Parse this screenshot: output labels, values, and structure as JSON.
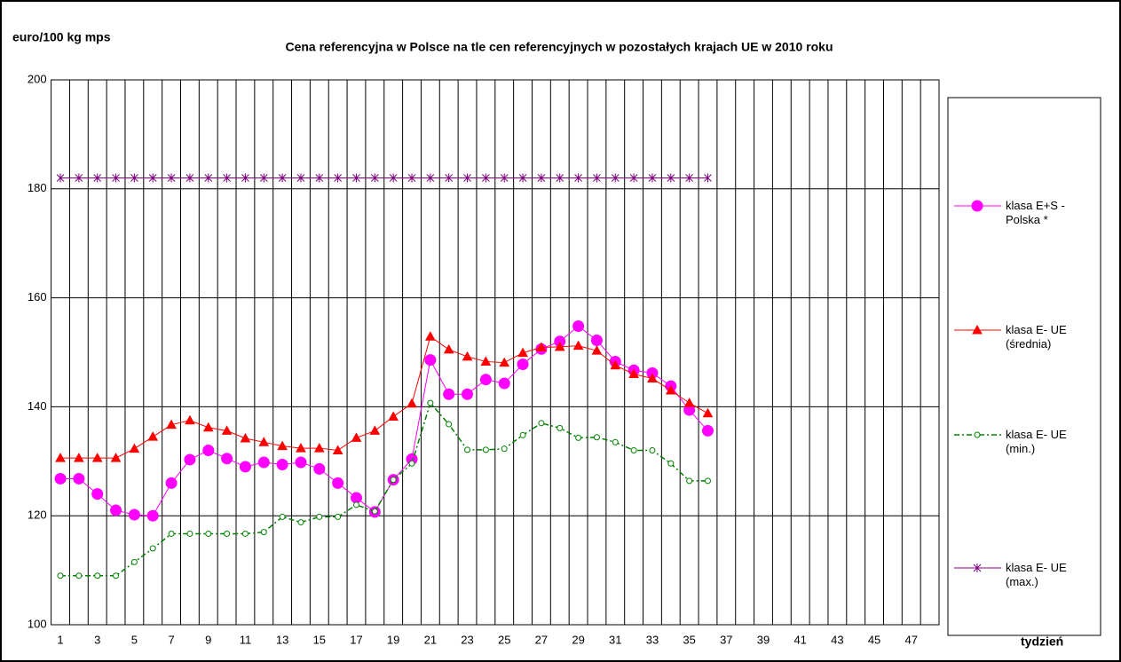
{
  "chart_data": {
    "type": "line",
    "title": "Cena referencyjna w Polsce na tle cen referencyjnych w pozostałych krajach UE w 2010 roku",
    "y_label": "euro/100 kg mps",
    "x_label": "tydzień",
    "categories": [
      1,
      null,
      3,
      null,
      5,
      null,
      7,
      null,
      9,
      null,
      11,
      null,
      13,
      null,
      15,
      null,
      17,
      null,
      19,
      null,
      21,
      null,
      23,
      null,
      25,
      null,
      27,
      null,
      29,
      null,
      31,
      null,
      33,
      null,
      35,
      null,
      37,
      null,
      39,
      null,
      41,
      null,
      43,
      null,
      45,
      null,
      47,
      null
    ],
    "ylim": [
      100,
      200
    ],
    "yticks": [
      100,
      120,
      140,
      160,
      180,
      200
    ],
    "grid": true,
    "legend": "right",
    "series": [
      {
        "name": "klasa E+S - Polska *",
        "color": "#ff00ff",
        "marker": "circle",
        "values": [
          126.8,
          126.8,
          124,
          121,
          120.2,
          120,
          126,
          130.3,
          132,
          130.5,
          129,
          129.8,
          129.4,
          129.8,
          128.6,
          126,
          123.3,
          120.7,
          126.6,
          130.4,
          148.6,
          142.3,
          142.3,
          145,
          144.3,
          147.8,
          150.6,
          152,
          154.8,
          152.2,
          148.3,
          146.7,
          146.2,
          143.8,
          139.4,
          135.6,
          null,
          null,
          null,
          null,
          null,
          null,
          null,
          null,
          null,
          null,
          null,
          null
        ]
      },
      {
        "name": "klasa E- UE (średnia)",
        "color": "#ff0000",
        "marker": "triangle",
        "values": [
          130.6,
          130.6,
          130.6,
          130.6,
          132.3,
          134.5,
          136.7,
          137.5,
          136.2,
          135.6,
          134.2,
          133.5,
          132.8,
          132.4,
          132.4,
          132,
          134.3,
          135.6,
          138.2,
          140.6,
          152.9,
          150.5,
          149.2,
          148.3,
          148.1,
          149.9,
          150.9,
          151,
          151.2,
          150.3,
          147.6,
          146,
          145.2,
          143,
          140.7,
          138.8,
          null,
          null,
          null,
          null,
          null,
          null,
          null,
          null,
          null,
          null,
          null,
          null
        ]
      },
      {
        "name": "klasa E- UE (min.)",
        "color": "#008000",
        "marker": "open-circle",
        "dash": "dash-dot",
        "values": [
          109,
          109,
          109,
          109,
          111.5,
          114,
          116.7,
          116.7,
          116.7,
          116.7,
          116.7,
          117,
          119.8,
          118.8,
          119.8,
          119.8,
          122,
          120.8,
          126.6,
          129.6,
          140.7,
          136.8,
          132.1,
          132.1,
          132.3,
          134.8,
          137,
          136.1,
          134.3,
          134.4,
          133.5,
          132,
          132,
          129.6,
          126.4,
          126.4,
          null,
          null,
          null,
          null,
          null,
          null,
          null,
          null,
          null,
          null,
          null,
          null
        ]
      },
      {
        "name": "klasa E- UE (max.)",
        "color": "#800080",
        "marker": "star",
        "values": [
          182,
          182,
          182,
          182,
          182,
          182,
          182,
          182,
          182,
          182,
          182,
          182,
          182,
          182,
          182,
          182,
          182,
          182,
          182,
          182,
          182,
          182,
          182,
          182,
          182,
          182,
          182,
          182,
          182,
          182,
          182,
          182,
          182,
          182,
          182,
          182,
          null,
          null,
          null,
          null,
          null,
          null,
          null,
          null,
          null,
          null,
          null,
          null
        ]
      }
    ]
  }
}
